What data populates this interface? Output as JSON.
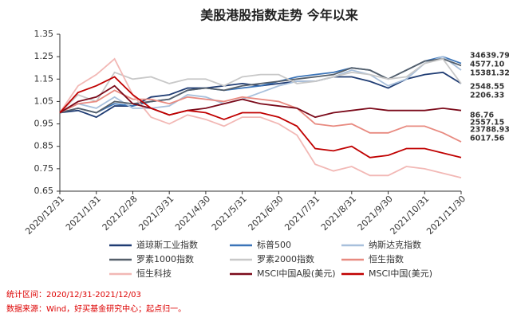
{
  "chart_data": {
    "type": "line",
    "title": "美股港股指数走势 今年以来",
    "categories": [
      "2020/12/31",
      null,
      "2021/1/31",
      null,
      "2021/2/28",
      null,
      "2021/3/31",
      null,
      "2021/4/30",
      null,
      "2021/5/31",
      null,
      "2021/6/30",
      null,
      "2021/7/31",
      null,
      "2021/8/31",
      null,
      "2021/9/30",
      null,
      "2021/10/31",
      null,
      "2021/11/30"
    ],
    "ylim": [
      0.65,
      1.35
    ],
    "yticks": [
      0.65,
      0.75,
      0.85,
      0.95,
      1.05,
      1.15,
      1.25,
      1.35
    ],
    "series": [
      {
        "name": "道琼斯工业指数",
        "color": "#1f3c73",
        "values": [
          1,
          1.01,
          0.98,
          1.03,
          1.03,
          1.07,
          1.08,
          1.11,
          1.11,
          1.12,
          1.13,
          1.12,
          1.13,
          1.14,
          1.14,
          1.16,
          1.16,
          1.14,
          1.11,
          1.15,
          1.17,
          1.18,
          1.13
        ]
      },
      {
        "name": "标普500",
        "color": "#3b74b8",
        "values": [
          1,
          1.02,
          1.0,
          1.04,
          1.03,
          1.05,
          1.06,
          1.1,
          1.11,
          1.1,
          1.11,
          1.12,
          1.14,
          1.16,
          1.17,
          1.18,
          1.2,
          1.19,
          1.15,
          1.19,
          1.23,
          1.25,
          1.22
        ]
      },
      {
        "name": "纳斯达克指数",
        "color": "#a8c0dc",
        "values": [
          1,
          1.04,
          1.02,
          1.07,
          1.02,
          1.02,
          1.03,
          1.08,
          1.07,
          1.04,
          1.06,
          1.09,
          1.12,
          1.14,
          1.14,
          1.16,
          1.19,
          1.17,
          1.12,
          1.15,
          1.22,
          1.25,
          1.19
        ]
      },
      {
        "name": "罗素1000指数",
        "color": "#555f6a",
        "values": [
          1,
          1.02,
          1.0,
          1.05,
          1.04,
          1.05,
          1.06,
          1.1,
          1.11,
          1.1,
          1.12,
          1.13,
          1.14,
          1.15,
          1.16,
          1.17,
          1.2,
          1.19,
          1.15,
          1.19,
          1.23,
          1.24,
          1.21
        ]
      },
      {
        "name": "罗素2000指数",
        "color": "#c8c8c8",
        "values": [
          1,
          1.08,
          1.05,
          1.18,
          1.15,
          1.16,
          1.13,
          1.15,
          1.15,
          1.12,
          1.16,
          1.17,
          1.17,
          1.13,
          1.14,
          1.16,
          1.18,
          1.17,
          1.15,
          1.16,
          1.22,
          1.24,
          1.13
        ]
      },
      {
        "name": "恒生指数",
        "color": "#e88a80",
        "values": [
          1,
          1.04,
          1.05,
          1.1,
          1.06,
          1.06,
          1.04,
          1.07,
          1.06,
          1.05,
          1.07,
          1.06,
          1.05,
          1.02,
          0.95,
          0.94,
          0.95,
          0.91,
          0.91,
          0.94,
          0.94,
          0.91,
          0.87
        ]
      },
      {
        "name": "恒生科技",
        "color": "#f2b8b5",
        "values": [
          1,
          1.12,
          1.17,
          1.24,
          1.08,
          0.98,
          0.95,
          0.99,
          0.97,
          0.94,
          0.98,
          0.98,
          0.95,
          0.9,
          0.77,
          0.74,
          0.76,
          0.72,
          0.72,
          0.76,
          0.75,
          0.73,
          0.71
        ]
      },
      {
        "name": "MSCI中国A股(美元)",
        "color": "#7b0a1a",
        "values": [
          1,
          1.05,
          1.07,
          1.12,
          1.04,
          1.02,
          0.99,
          1.01,
          1.02,
          1.04,
          1.06,
          1.04,
          1.03,
          1.02,
          0.98,
          1.0,
          1.01,
          1.02,
          1.01,
          1.01,
          1.01,
          1.02,
          1.01
        ]
      },
      {
        "name": "MSCI中国(美元)",
        "color": "#c00000",
        "values": [
          1,
          1.09,
          1.12,
          1.16,
          1.08,
          1.02,
          0.99,
          1.01,
          1.0,
          0.97,
          1.0,
          1.0,
          0.98,
          0.94,
          0.84,
          0.83,
          0.85,
          0.8,
          0.81,
          0.84,
          0.84,
          0.82,
          0.8
        ]
      }
    ],
    "annotations": [
      {
        "text": "34639.79",
        "color": "#1f3c73"
      },
      {
        "text": "4577.10",
        "color": "#3b74b8"
      },
      {
        "text": "15381.32",
        "color": "#a8c0dc"
      },
      {
        "text": "2548.55",
        "color": "#555f6a"
      },
      {
        "text": "2206.33",
        "color": "#b0b0b0"
      },
      {
        "text": "86.76",
        "color": "#7b0a1a"
      },
      {
        "text": "2557.15",
        "color": "#c00000"
      },
      {
        "text": "23788.93",
        "color": "#c00000"
      },
      {
        "text": "6017.56",
        "color": "#e8a8a4"
      }
    ],
    "footnotes": [
      "统计区间：2020/12/31-2021/12/03",
      "数据来源：Wind，好买基金研究中心；起点归一。"
    ]
  }
}
